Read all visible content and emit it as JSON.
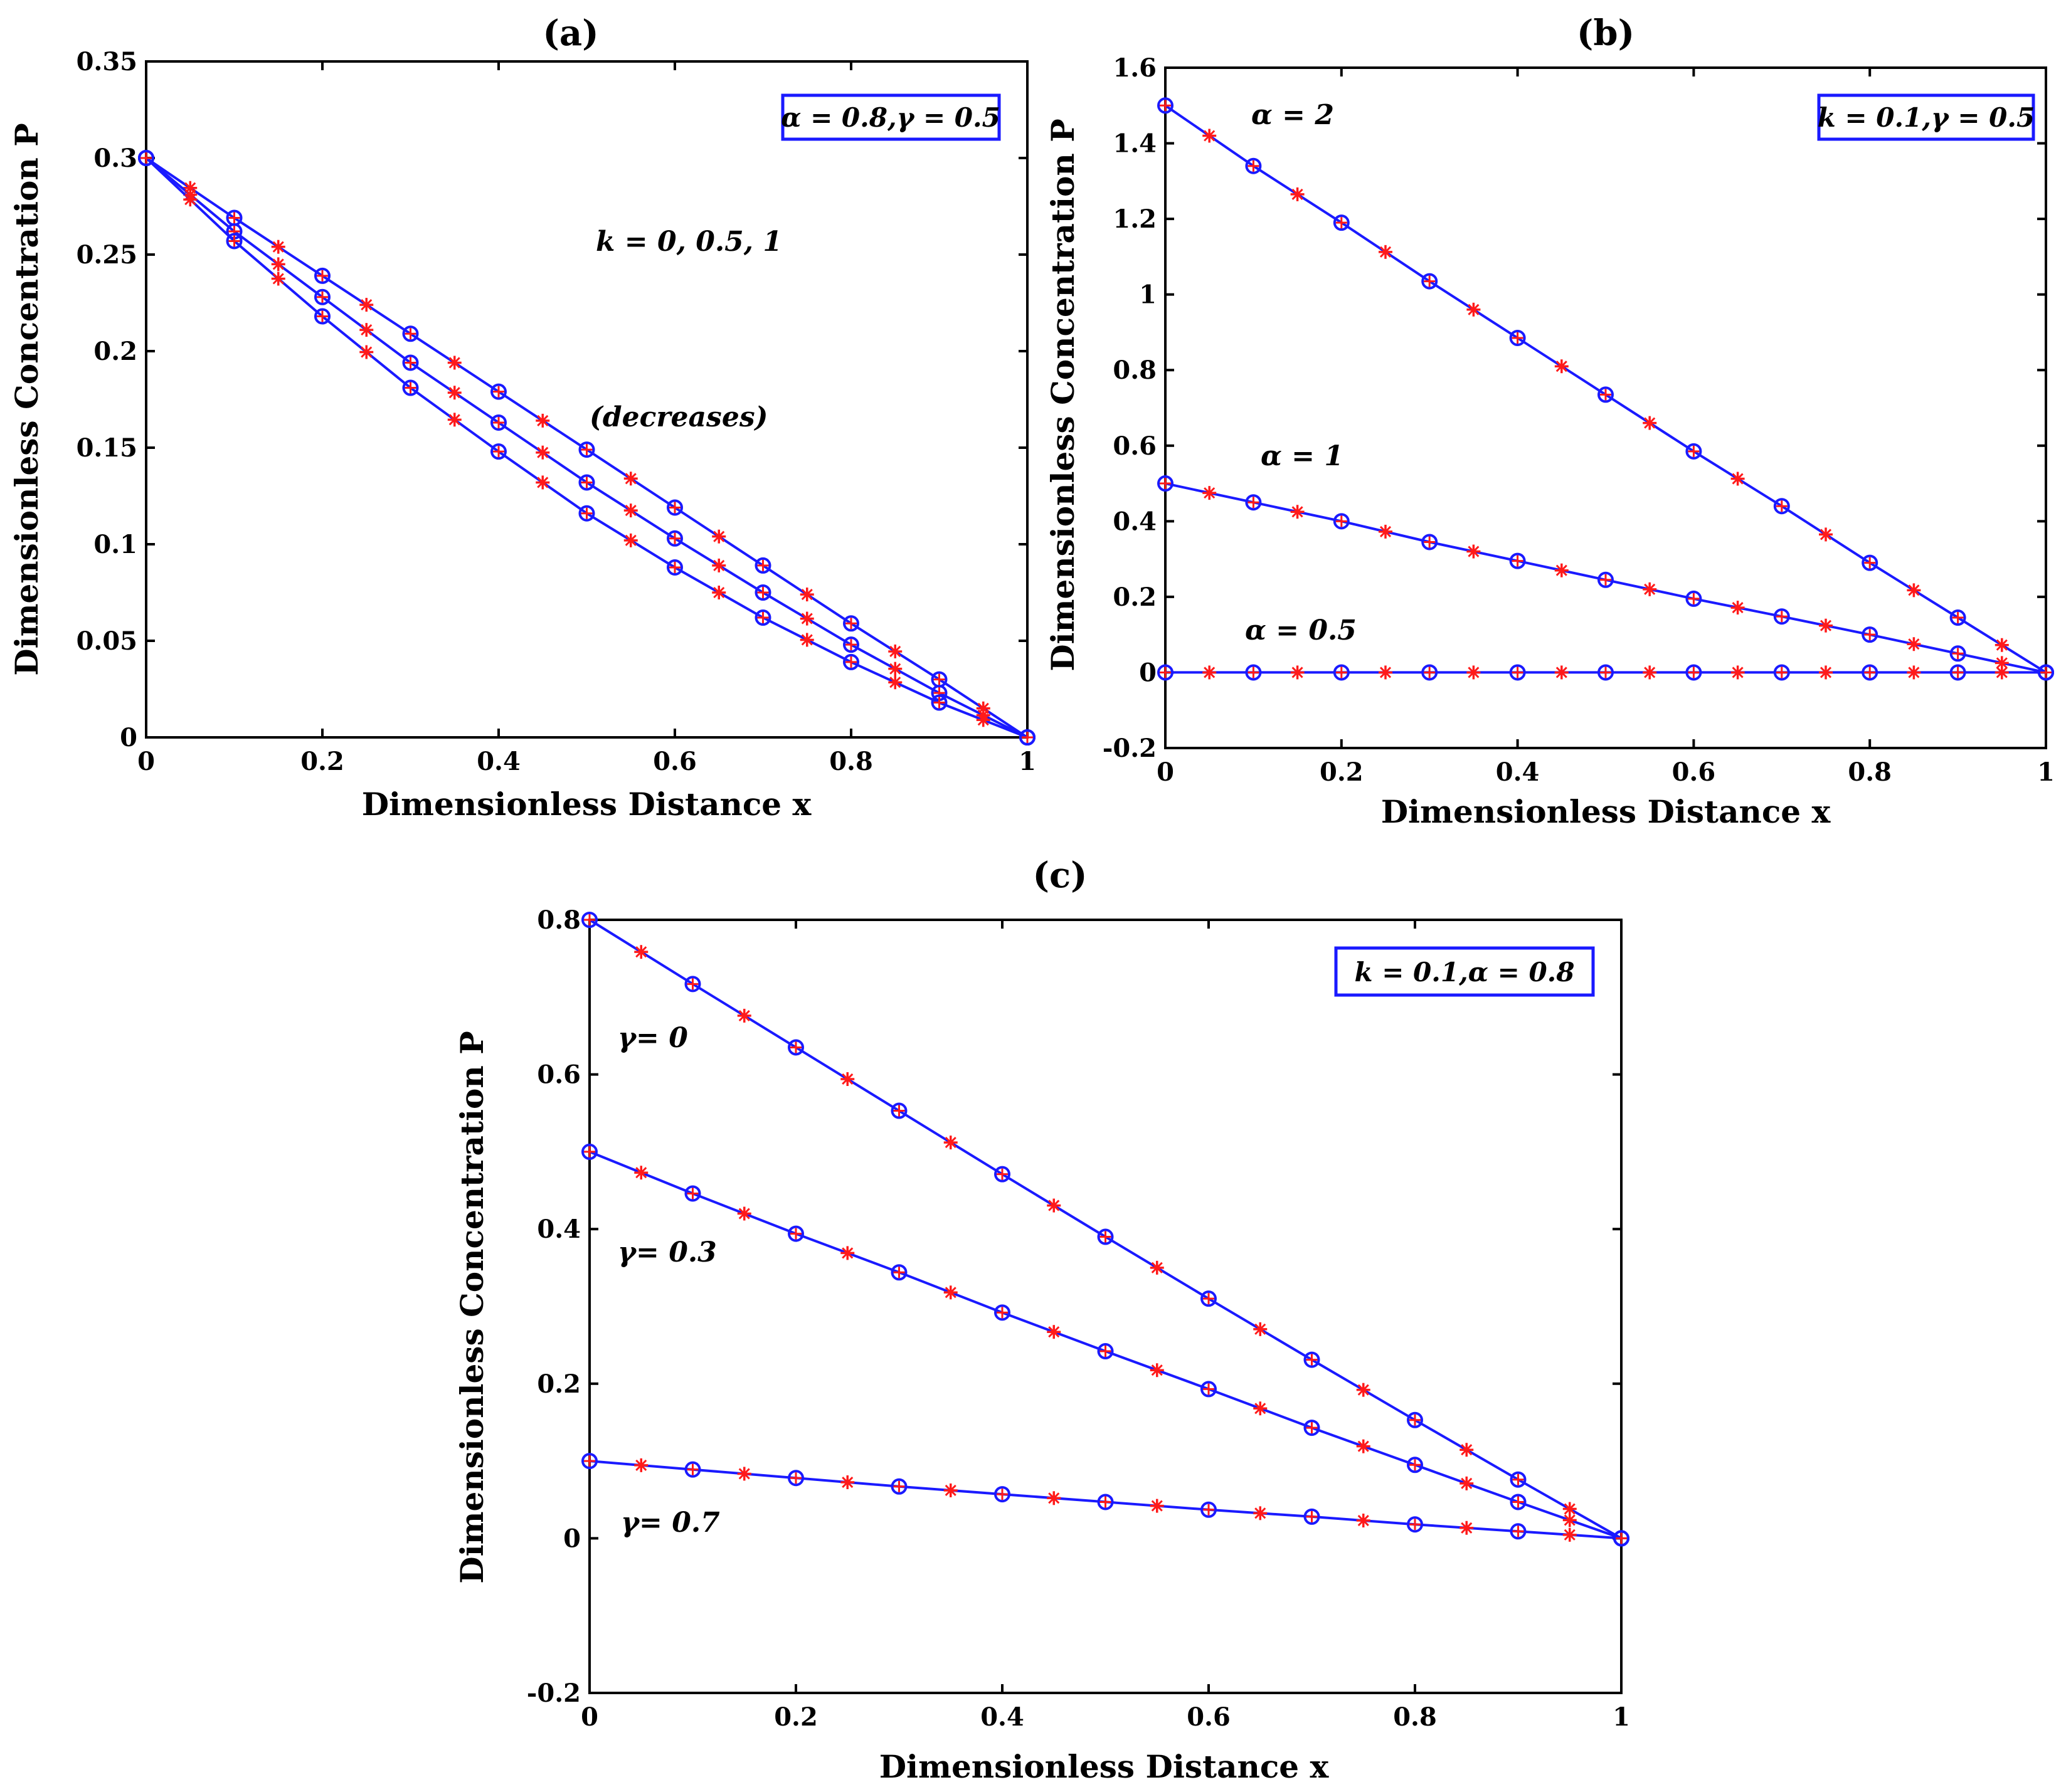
{
  "figure": {
    "colors": {
      "line": "#1a1aff",
      "marker_star": "#ff1a1a",
      "marker_circle": "#1a1aff",
      "axis": "#000000"
    }
  },
  "chart_data": [
    {
      "id": "a",
      "type": "line",
      "title": "(a)",
      "xlabel": "Dimensionless Distance x",
      "ylabel": "Dimensionless Concentration P",
      "xlim": [
        0,
        1
      ],
      "ylim": [
        0,
        0.35
      ],
      "xticks": [
        0,
        0.2,
        0.4,
        0.6,
        0.8,
        1
      ],
      "xtick_labels": [
        "0",
        "0.2",
        "0.4",
        "0.6",
        "0.8",
        "1"
      ],
      "yticks": [
        0,
        0.05,
        0.1,
        0.15,
        0.2,
        0.25,
        0.3,
        0.35
      ],
      "ytick_labels": [
        "0",
        "0.05",
        "0.1",
        "0.15",
        "0.2",
        "0.25",
        "0.3",
        "0.35"
      ],
      "legend_box": "α = 0.8,γ = 0.5",
      "annotations": [
        "k = 0, 0.5, 1",
        "(decreases)"
      ],
      "series": [
        {
          "name": "k = 0",
          "x": [
            0,
            0.1,
            0.2,
            0.3,
            0.4,
            0.5,
            0.6,
            0.7,
            0.8,
            0.9,
            1
          ],
          "values": [
            0.3,
            0.269,
            0.239,
            0.209,
            0.179,
            0.149,
            0.119,
            0.089,
            0.059,
            0.03,
            0
          ]
        },
        {
          "name": "k = 0.5",
          "x": [
            0,
            0.1,
            0.2,
            0.3,
            0.4,
            0.5,
            0.6,
            0.7,
            0.8,
            0.9,
            1
          ],
          "values": [
            0.3,
            0.262,
            0.228,
            0.194,
            0.163,
            0.132,
            0.103,
            0.075,
            0.048,
            0.023,
            0
          ]
        },
        {
          "name": "k = 1",
          "x": [
            0,
            0.1,
            0.2,
            0.3,
            0.4,
            0.5,
            0.6,
            0.7,
            0.8,
            0.9,
            1
          ],
          "values": [
            0.3,
            0.257,
            0.218,
            0.181,
            0.148,
            0.116,
            0.088,
            0.062,
            0.039,
            0.018,
            0
          ]
        }
      ]
    },
    {
      "id": "b",
      "type": "line",
      "title": "(b)",
      "xlabel": "Dimensionless Distance x",
      "ylabel": "Dimensionless Concentration P",
      "xlim": [
        0,
        1
      ],
      "ylim": [
        -0.2,
        1.6
      ],
      "xticks": [
        0,
        0.2,
        0.4,
        0.6,
        0.8,
        1
      ],
      "xtick_labels": [
        "0",
        "0.2",
        "0.4",
        "0.6",
        "0.8",
        "1"
      ],
      "yticks": [
        -0.2,
        0,
        0.2,
        0.4,
        0.6,
        0.8,
        1,
        1.2,
        1.4,
        1.6
      ],
      "ytick_labels": [
        "-0.2",
        "0",
        "0.2",
        "0.4",
        "0.6",
        "0.8",
        "1",
        "1.2",
        "1.4",
        "1.6"
      ],
      "legend_box": "k = 0.1,γ = 0.5",
      "annotations": [
        "α = 2",
        "α = 1",
        "α = 0.5"
      ],
      "series": [
        {
          "name": "α = 2",
          "x": [
            0,
            0.1,
            0.2,
            0.3,
            0.4,
            0.5,
            0.6,
            0.7,
            0.8,
            0.9,
            1
          ],
          "values": [
            1.5,
            1.34,
            1.19,
            1.035,
            0.885,
            0.735,
            0.585,
            0.44,
            0.29,
            0.145,
            0
          ]
        },
        {
          "name": "α = 1",
          "x": [
            0,
            0.1,
            0.2,
            0.3,
            0.4,
            0.5,
            0.6,
            0.7,
            0.8,
            0.9,
            1
          ],
          "values": [
            0.5,
            0.45,
            0.4,
            0.345,
            0.295,
            0.245,
            0.195,
            0.148,
            0.1,
            0.05,
            0
          ]
        },
        {
          "name": "α = 0.5",
          "x": [
            0,
            0.1,
            0.2,
            0.3,
            0.4,
            0.5,
            0.6,
            0.7,
            0.8,
            0.9,
            1
          ],
          "values": [
            0,
            0,
            0,
            0,
            0,
            0,
            0,
            0,
            0,
            0,
            0
          ]
        }
      ]
    },
    {
      "id": "c",
      "type": "line",
      "title": "(c)",
      "xlabel": "Dimensionless Distance x",
      "ylabel": "Dimensionless Concentration P",
      "xlim": [
        0,
        1
      ],
      "ylim": [
        -0.2,
        0.8
      ],
      "xticks": [
        0,
        0.2,
        0.4,
        0.6,
        0.8,
        1
      ],
      "xtick_labels": [
        "0",
        "0.2",
        "0.4",
        "0.6",
        "0.8",
        "1"
      ],
      "yticks": [
        -0.2,
        0,
        0.2,
        0.4,
        0.6,
        0.8
      ],
      "ytick_labels": [
        "-0.2",
        "0",
        "0.2",
        "0.4",
        "0.6",
        "0.8"
      ],
      "legend_box": "k = 0.1,α = 0.8",
      "annotations": [
        "γ= 0",
        "γ= 0.3",
        "γ= 0.7"
      ],
      "series": [
        {
          "name": "γ= 0",
          "x": [
            0,
            0.1,
            0.2,
            0.3,
            0.4,
            0.5,
            0.6,
            0.7,
            0.8,
            0.9,
            1
          ],
          "values": [
            0.8,
            0.717,
            0.635,
            0.553,
            0.471,
            0.39,
            0.31,
            0.231,
            0.153,
            0.076,
            0
          ]
        },
        {
          "name": "γ= 0.3",
          "x": [
            0,
            0.1,
            0.2,
            0.3,
            0.4,
            0.5,
            0.6,
            0.7,
            0.8,
            0.9,
            1
          ],
          "values": [
            0.5,
            0.446,
            0.394,
            0.344,
            0.292,
            0.242,
            0.193,
            0.143,
            0.095,
            0.047,
            0
          ]
        },
        {
          "name": "γ= 0.7",
          "x": [
            0,
            0.1,
            0.2,
            0.3,
            0.4,
            0.5,
            0.6,
            0.7,
            0.8,
            0.9,
            1
          ],
          "values": [
            0.1,
            0.089,
            0.078,
            0.067,
            0.057,
            0.047,
            0.037,
            0.028,
            0.018,
            0.009,
            0
          ]
        }
      ]
    }
  ]
}
